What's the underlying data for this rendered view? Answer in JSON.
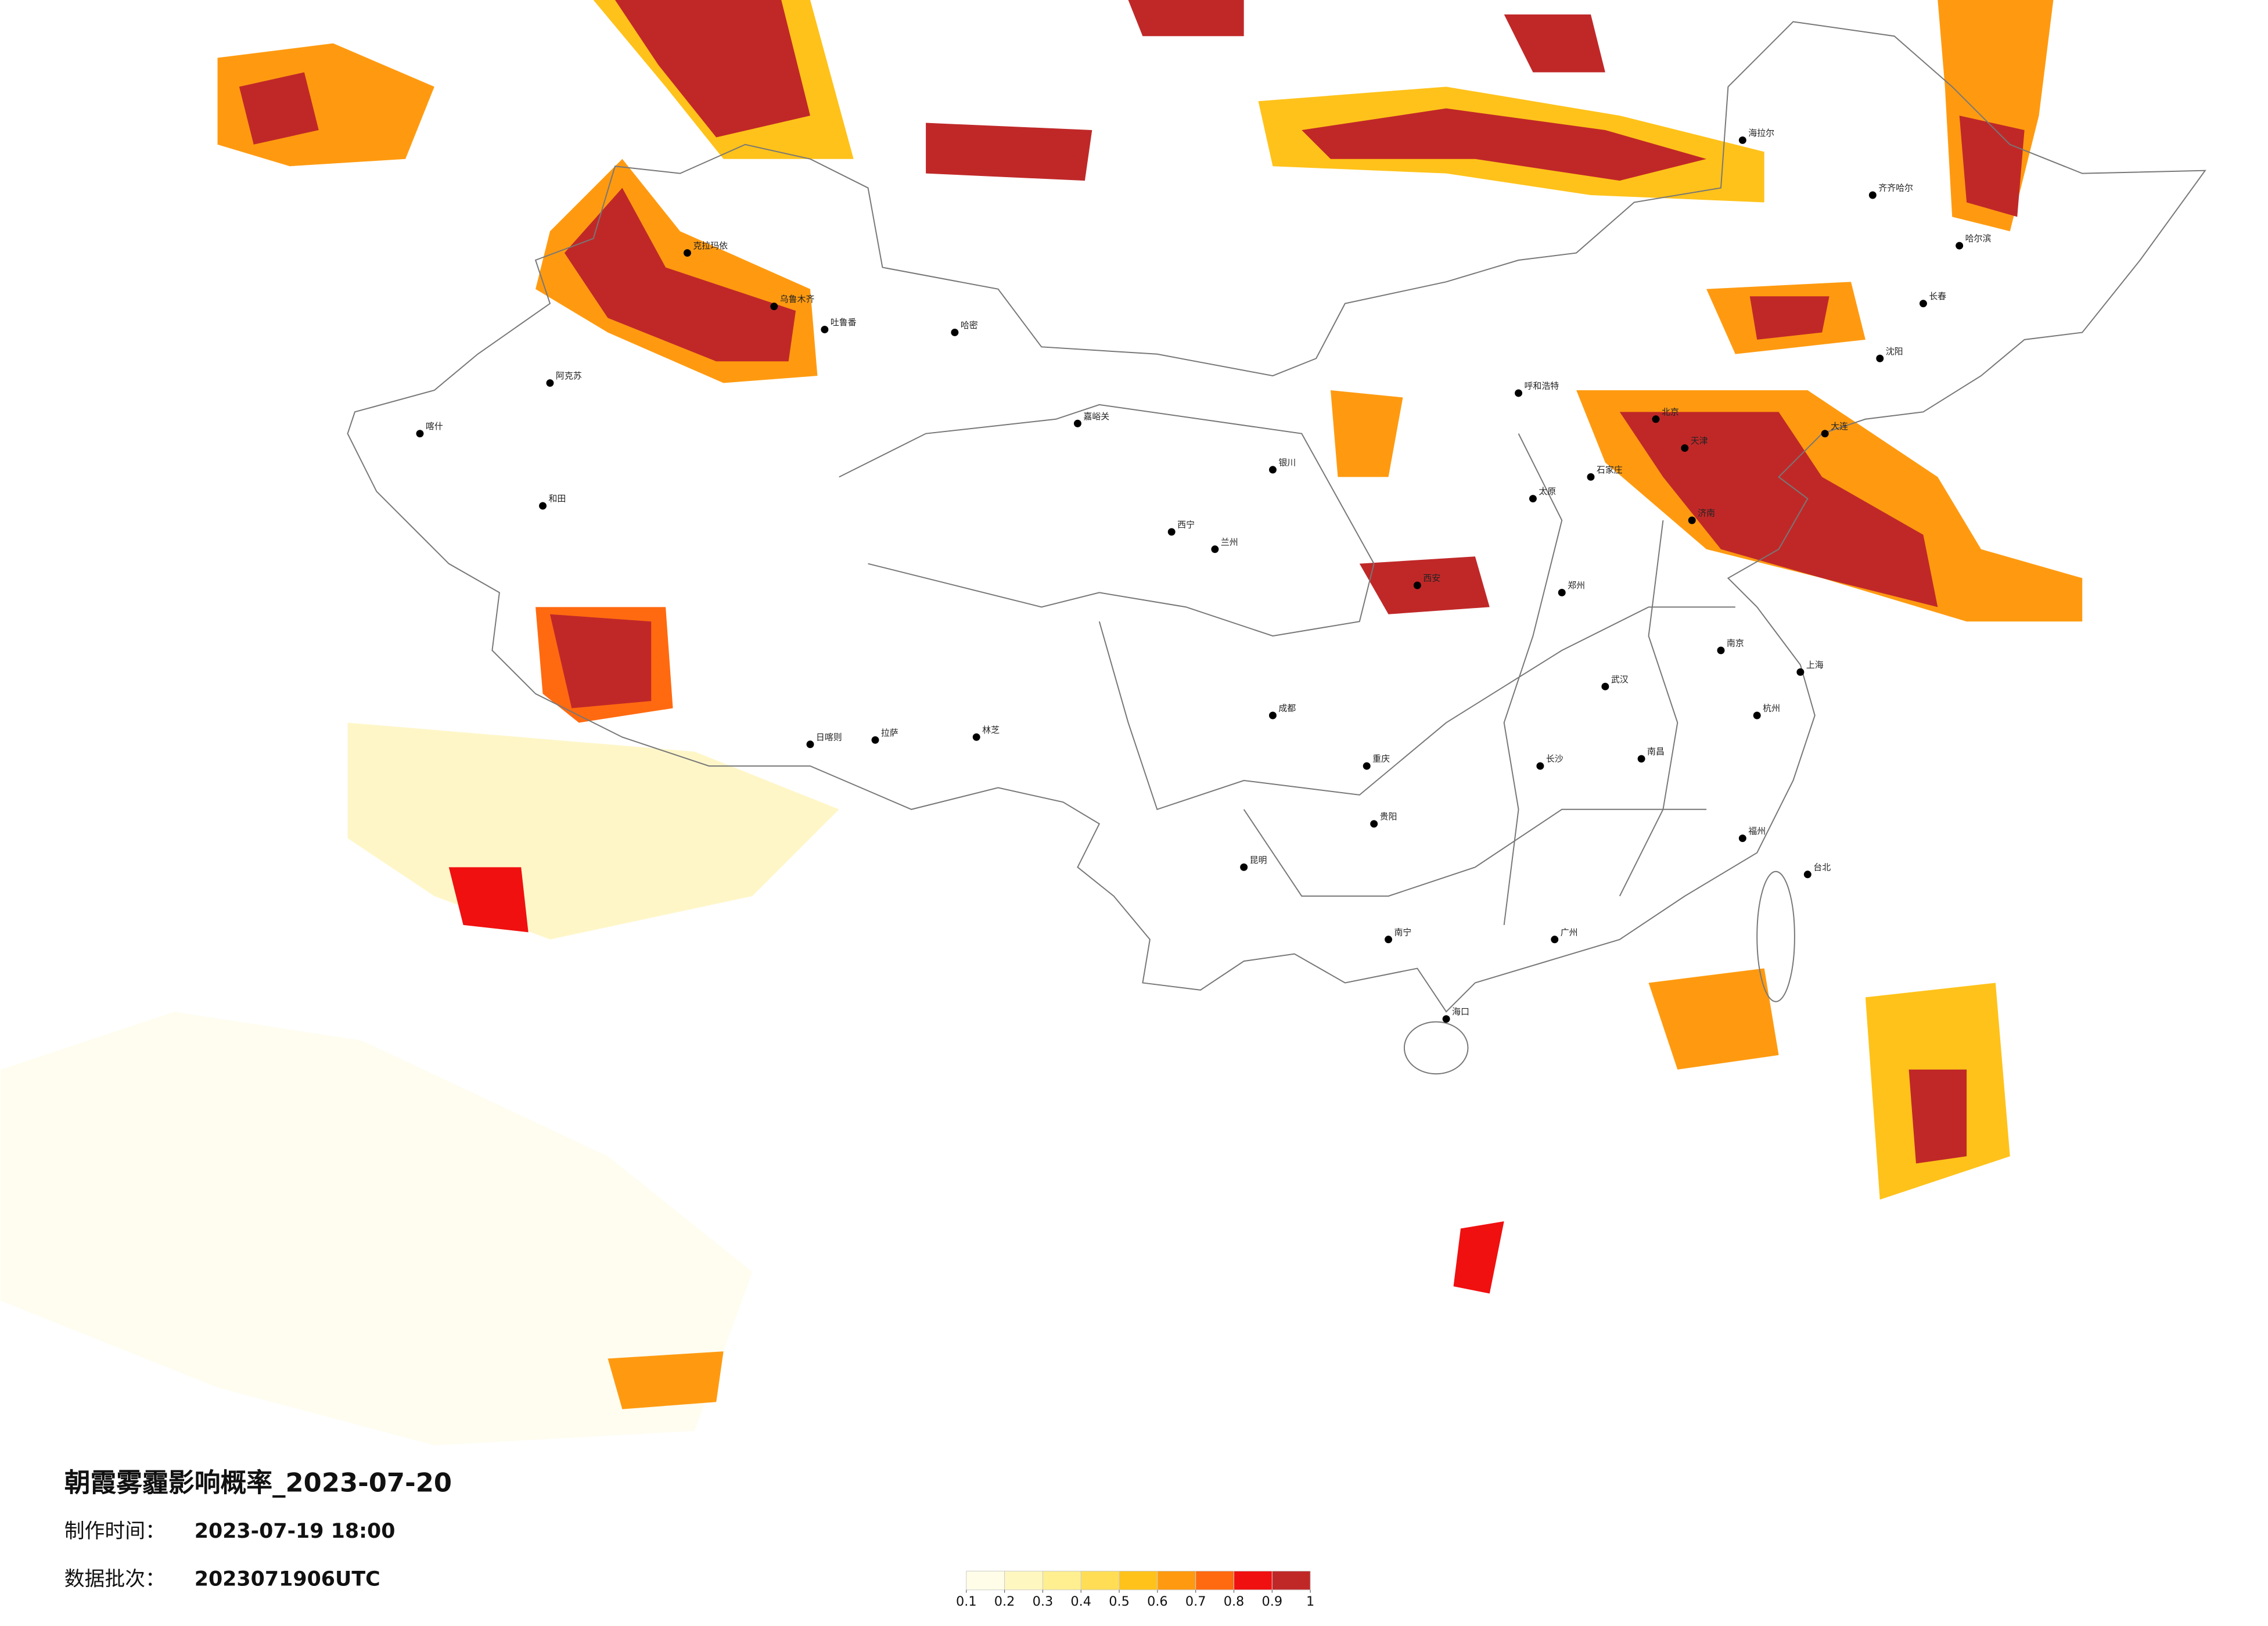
{
  "header": {
    "title": "朝霞雾霾影响概率_2023-07-20",
    "production_time": {
      "label": "制作时间：",
      "value": "2023-07-19 18:00"
    },
    "data_batch": {
      "label": "数据批次：",
      "value": "2023071906UTC"
    }
  },
  "legend": {
    "colors": [
      "#fffde8",
      "#fff7c0",
      "#ffef90",
      "#ffdd55",
      "#ffc21a",
      "#ff9a10",
      "#ff6a10",
      "#f01010",
      "#c02828"
    ],
    "ticks": [
      0.1,
      0.2,
      0.3,
      0.4,
      0.5,
      0.6,
      0.7,
      0.8,
      0.9,
      1
    ]
  },
  "cities": [
    "克拉玛依",
    "乌鲁木齐",
    "吐鲁番",
    "哈密",
    "阿克苏",
    "喀什",
    "和田",
    "拉萨",
    "日喀则",
    "林芝",
    "嘉峪关",
    "西宁",
    "兰州",
    "银川",
    "呼和浩特",
    "海拉尔",
    "齐齐哈尔",
    "哈尔滨",
    "长春",
    "沈阳",
    "大连",
    "北京",
    "天津",
    "石家庄",
    "太原",
    "济南",
    "郑州",
    "西安",
    "成都",
    "重庆",
    "武汉",
    "南京",
    "上海",
    "杭州",
    "长沙",
    "南昌",
    "福州",
    "贵阳",
    "昆明",
    "南宁",
    "广州",
    "海口",
    "台北"
  ]
}
